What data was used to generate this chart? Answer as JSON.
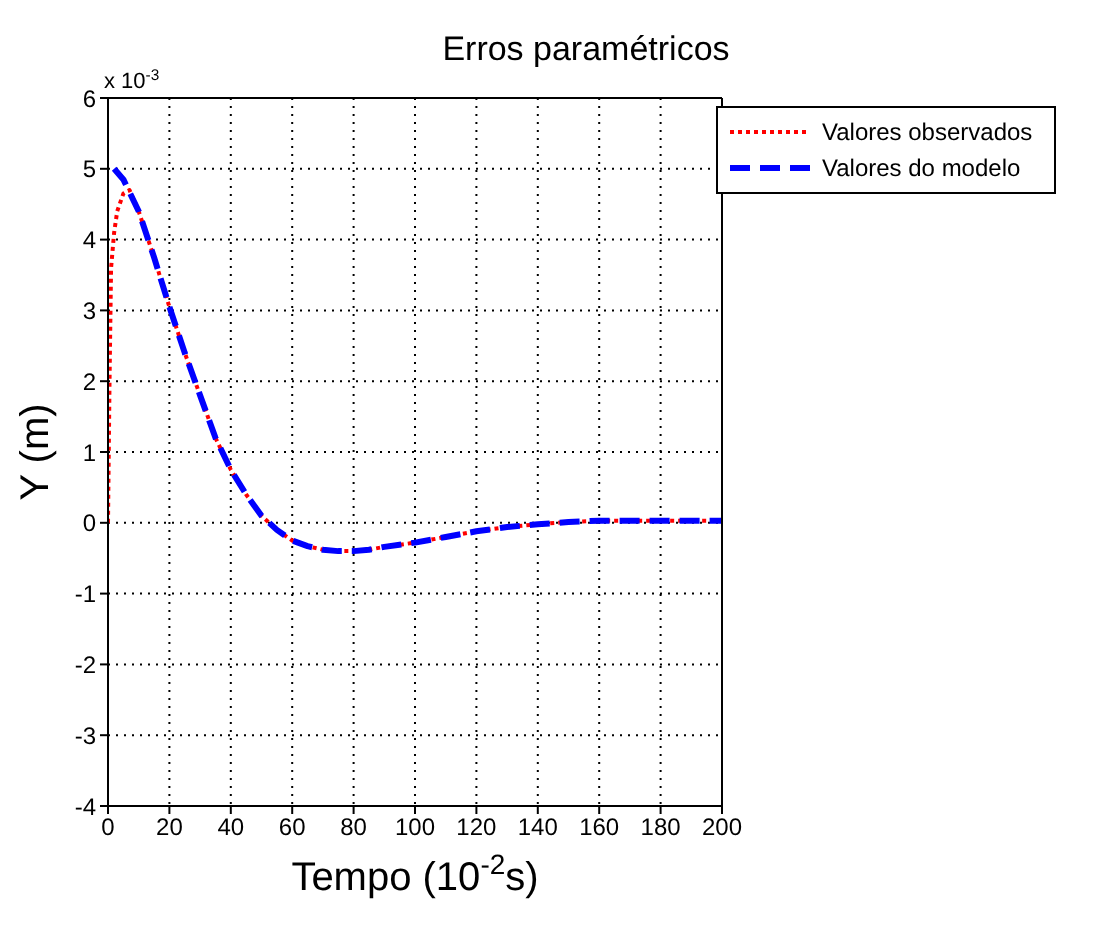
{
  "chart_data": {
    "type": "line",
    "title": "Erros paramétricos",
    "xlabel": "Tempo (10$^{-2}$s)",
    "ylabel": "Y (m)",
    "annotations": [
      "x 10$^{-3}$"
    ],
    "xlim": [
      0,
      200
    ],
    "xticks": [
      0,
      20,
      40,
      60,
      80,
      100,
      120,
      140,
      160,
      180,
      200
    ],
    "ylim": [
      -4,
      6
    ],
    "yticks": [
      -4,
      -3,
      -2,
      -1,
      0,
      1,
      2,
      3,
      4,
      5,
      6
    ],
    "grid": true,
    "legend": "top right",
    "series": [
      {
        "name": "Valores observados",
        "color": "#ff0000",
        "line_style": "dotted",
        "x": [
          0,
          0.5,
          1,
          2,
          3,
          5,
          7,
          10,
          15,
          20,
          25,
          30,
          35,
          40,
          45,
          50,
          55,
          60,
          65,
          70,
          75,
          80,
          85,
          90,
          100,
          110,
          120,
          130,
          140,
          150,
          160,
          170,
          180,
          190,
          200
        ],
        "values": [
          0,
          2,
          3.6,
          4.1,
          4.4,
          4.65,
          4.7,
          4.4,
          3.75,
          3.05,
          2.4,
          1.8,
          1.2,
          0.75,
          0.4,
          0.1,
          -0.1,
          -0.25,
          -0.33,
          -0.38,
          -0.4,
          -0.4,
          -0.38,
          -0.34,
          -0.28,
          -0.2,
          -0.12,
          -0.06,
          -0.02,
          0.01,
          0.03,
          0.03,
          0.03,
          0.03,
          0.03
        ]
      },
      {
        "name": "Valores do modelo",
        "color": "#0000ff",
        "line_style": "dashed",
        "x": [
          2,
          5,
          10,
          15,
          20,
          25,
          30,
          35,
          40,
          45,
          50,
          55,
          60,
          65,
          70,
          75,
          80,
          85,
          90,
          100,
          110,
          120,
          130,
          140,
          150,
          160,
          170,
          180,
          190,
          200
        ],
        "values": [
          5,
          4.85,
          4.4,
          3.75,
          3.05,
          2.4,
          1.8,
          1.2,
          0.75,
          0.4,
          0.1,
          -0.1,
          -0.25,
          -0.33,
          -0.38,
          -0.4,
          -0.4,
          -0.38,
          -0.34,
          -0.28,
          -0.2,
          -0.12,
          -0.06,
          -0.02,
          0.01,
          0.03,
          0.03,
          0.03,
          0.03,
          0.03
        ]
      }
    ]
  }
}
